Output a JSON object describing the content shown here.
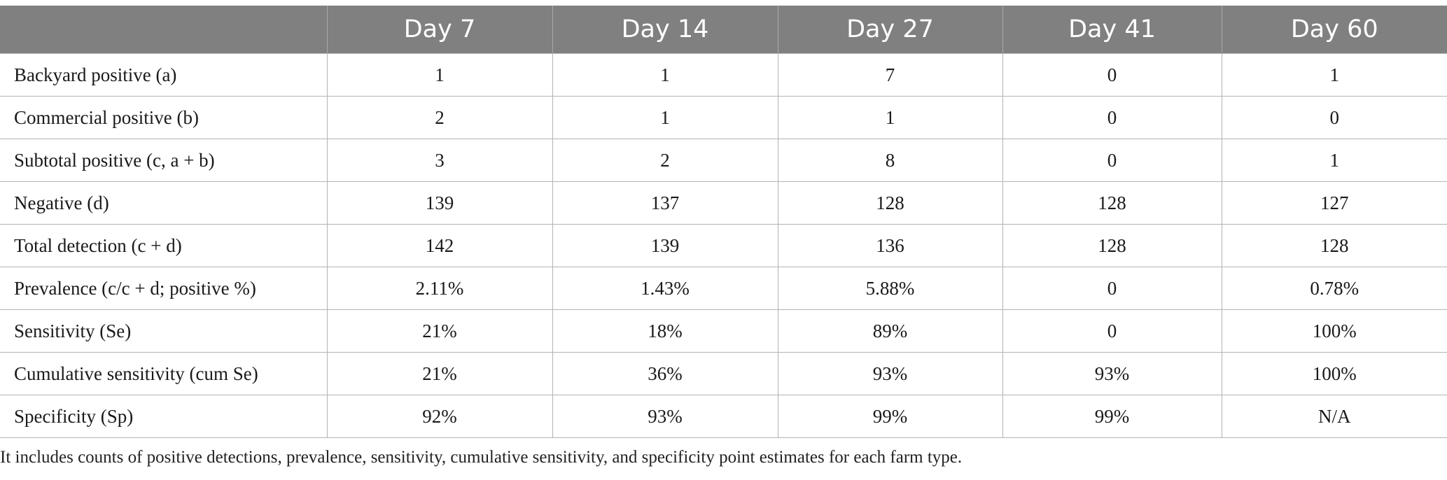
{
  "table": {
    "headers": [
      "",
      "Day 7",
      "Day 14",
      "Day 27",
      "Day 41",
      "Day 60"
    ],
    "rows": [
      {
        "label": "Backyard positive (a)",
        "values": [
          "1",
          "1",
          "7",
          "0",
          "1"
        ]
      },
      {
        "label": "Commercial positive (b)",
        "values": [
          "2",
          "1",
          "1",
          "0",
          "0"
        ]
      },
      {
        "label": "Subtotal positive (c, a + b)",
        "values": [
          "3",
          "2",
          "8",
          "0",
          "1"
        ]
      },
      {
        "label": "Negative (d)",
        "values": [
          "139",
          "137",
          "128",
          "128",
          "127"
        ]
      },
      {
        "label": "Total detection (c + d)",
        "values": [
          "142",
          "139",
          "136",
          "128",
          "128"
        ]
      },
      {
        "label": "Prevalence (c/c + d; positive %)",
        "values": [
          "2.11%",
          "1.43%",
          "5.88%",
          "0",
          "0.78%"
        ]
      },
      {
        "label": "Sensitivity (Se)",
        "values": [
          "21%",
          "18%",
          "89%",
          "0",
          "100%"
        ]
      },
      {
        "label": "Cumulative sensitivity (cum Se)",
        "values": [
          "21%",
          "36%",
          "93%",
          "93%",
          "100%"
        ]
      },
      {
        "label": "Specificity (Sp)",
        "values": [
          "92%",
          "93%",
          "99%",
          "99%",
          "N/A"
        ]
      }
    ]
  },
  "caption": "It includes counts of positive detections, prevalence, sensitivity, cumulative sensitivity, and specificity point estimates for each farm type."
}
